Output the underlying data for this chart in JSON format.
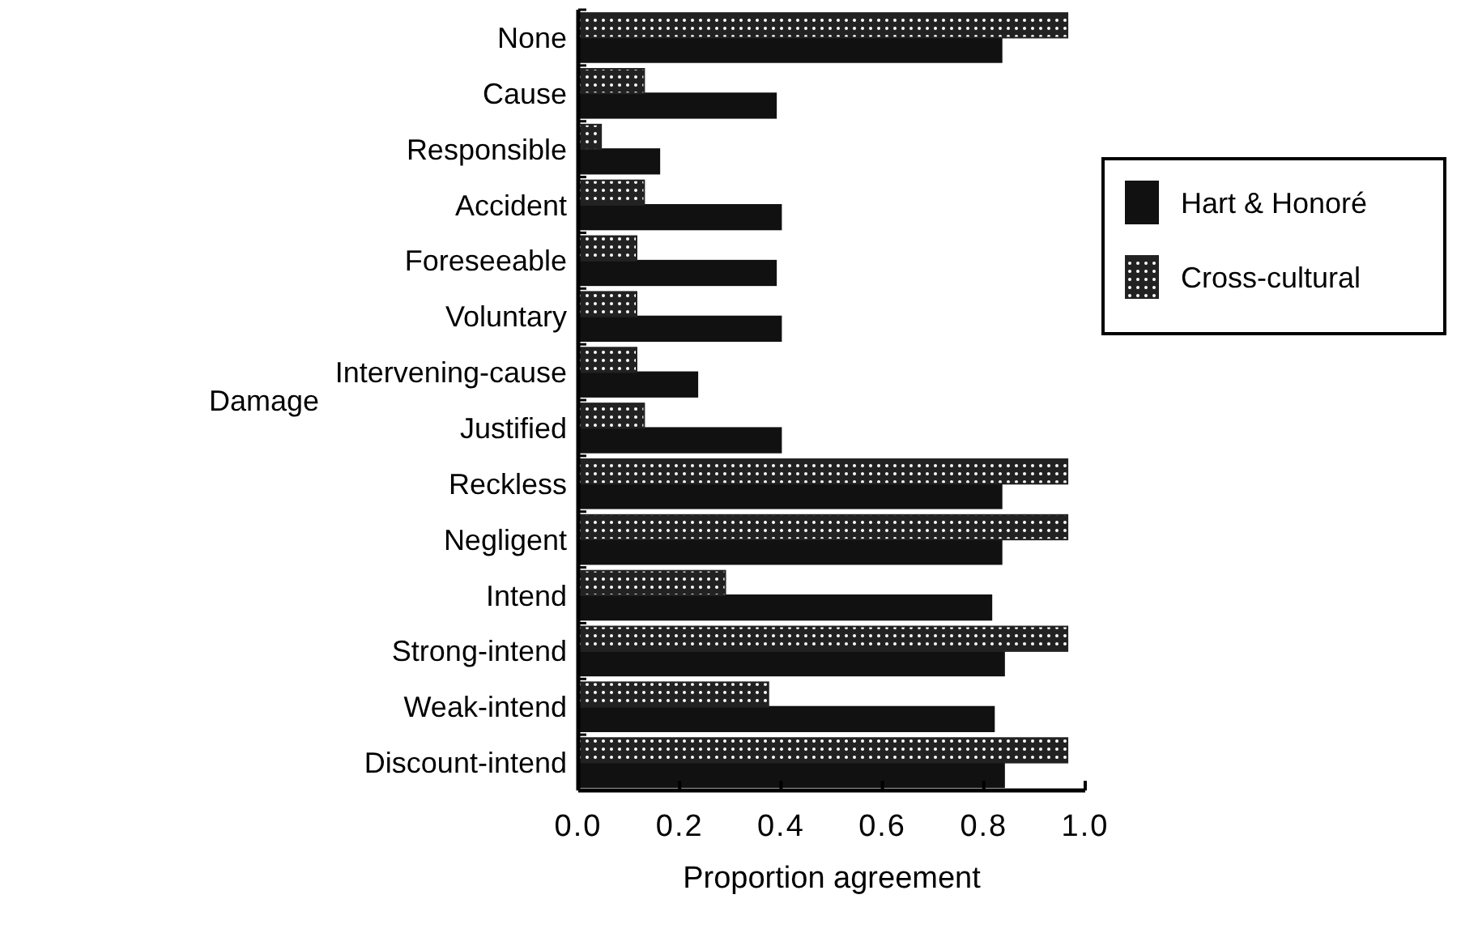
{
  "chart_data": {
    "type": "bar",
    "orientation": "horizontal",
    "ylabel": "Damage",
    "xlabel": "Proportion agreement",
    "categories": [
      "None",
      "Cause",
      "Responsible",
      "Accident",
      "Foreseeable",
      "Voluntary",
      "Intervening-cause",
      "Justified",
      "Reckless",
      "Negligent",
      "Intend",
      "Strong-intend",
      "Weak-intend",
      "Discount-intend"
    ],
    "series": [
      {
        "name": "Hart & Honoré",
        "color": "#111111",
        "values": [
          0.835,
          0.39,
          0.16,
          0.4,
          0.39,
          0.4,
          0.235,
          0.4,
          0.835,
          0.835,
          0.815,
          0.84,
          0.82,
          0.84
        ]
      },
      {
        "name": "Cross-cultural",
        "color": "#222222",
        "values": [
          0.965,
          0.13,
          0.045,
          0.13,
          0.115,
          0.115,
          0.115,
          0.13,
          0.965,
          0.965,
          0.29,
          0.965,
          0.375,
          0.965
        ]
      }
    ],
    "xlim": [
      0,
      1
    ],
    "xticks": [
      {
        "value": 0,
        "label": "0.0"
      },
      {
        "value": 0.2,
        "label": "0.2"
      },
      {
        "value": 0.4,
        "label": "0.4"
      },
      {
        "value": 0.6,
        "label": "0.6"
      },
      {
        "value": 0.8,
        "label": "0.8"
      },
      {
        "value": 1,
        "label": "1.0"
      }
    ],
    "legend": "right"
  }
}
